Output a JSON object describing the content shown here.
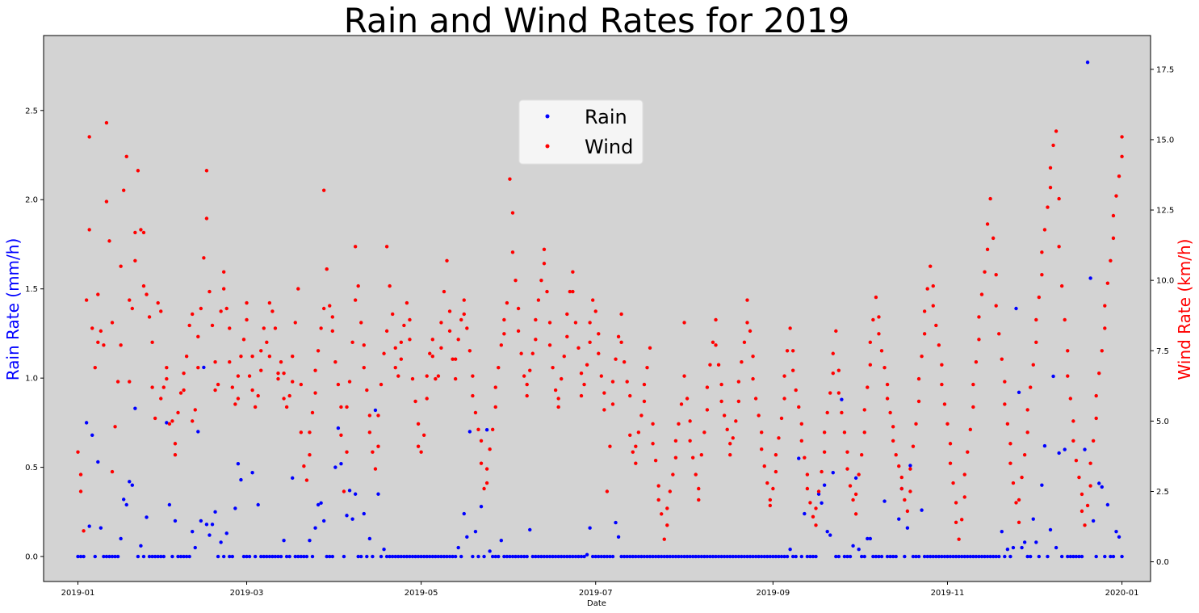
{
  "chart_data": {
    "type": "scatter",
    "title": "Rain and Wind Rates for 2019",
    "xlabel": "Date",
    "ylabel_left": "Rain Rate (mm/h)",
    "ylabel_right": "Wind Rate (km/h)",
    "x_range": [
      "2018-12-20",
      "2020-01-11"
    ],
    "x_ticks": [
      "2019-01",
      "2019-03",
      "2019-05",
      "2019-07",
      "2019-09",
      "2019-11",
      "2020-01"
    ],
    "ylim_left": [
      -0.14,
      2.92
    ],
    "yticks_left": [
      "0.0",
      "0.5",
      "1.0",
      "1.5",
      "2.0",
      "2.5"
    ],
    "ylim_right": [
      -0.7,
      18.7
    ],
    "yticks_right": [
      "0.0",
      "2.5",
      "5.0",
      "7.5",
      "10.0",
      "12.5",
      "15.0",
      "17.5"
    ],
    "background": "#d3d3d3",
    "grid": false,
    "legend_position": "upper-center",
    "series": [
      {
        "name": "Rain",
        "color": "#0000ff",
        "axis": "left",
        "baseline": 0.0,
        "points": [
          [
            "2019-01-04",
            0.75
          ],
          [
            "2019-01-05",
            0.17
          ],
          [
            "2019-01-06",
            0.68
          ],
          [
            "2019-01-08",
            0.53
          ],
          [
            "2019-01-09",
            0.16
          ],
          [
            "2019-01-16",
            0.1
          ],
          [
            "2019-01-17",
            0.32
          ],
          [
            "2019-01-18",
            0.29
          ],
          [
            "2019-01-19",
            0.42
          ],
          [
            "2019-01-20",
            0.4
          ],
          [
            "2019-01-21",
            0.83
          ],
          [
            "2019-01-23",
            0.06
          ],
          [
            "2019-01-25",
            0.22
          ],
          [
            "2019-02-01",
            0.75
          ],
          [
            "2019-02-02",
            0.29
          ],
          [
            "2019-02-04",
            0.2
          ],
          [
            "2019-02-10",
            0.14
          ],
          [
            "2019-02-11",
            0.05
          ],
          [
            "2019-02-12",
            0.7
          ],
          [
            "2019-02-13",
            0.2
          ],
          [
            "2019-02-14",
            1.06
          ],
          [
            "2019-02-15",
            0.18
          ],
          [
            "2019-02-16",
            0.12
          ],
          [
            "2019-02-17",
            0.18
          ],
          [
            "2019-02-18",
            0.25
          ],
          [
            "2019-02-20",
            0.08
          ],
          [
            "2019-02-22",
            0.13
          ],
          [
            "2019-02-25",
            0.27
          ],
          [
            "2019-02-26",
            0.52
          ],
          [
            "2019-02-27",
            0.43
          ],
          [
            "2019-03-03",
            0.47
          ],
          [
            "2019-03-05",
            0.29
          ],
          [
            "2019-03-14",
            0.09
          ],
          [
            "2019-03-17",
            0.44
          ],
          [
            "2019-03-23",
            0.09
          ],
          [
            "2019-03-25",
            0.16
          ],
          [
            "2019-03-26",
            0.29
          ],
          [
            "2019-03-27",
            0.3
          ],
          [
            "2019-03-28",
            0.2
          ],
          [
            "2019-04-01",
            0.5
          ],
          [
            "2019-04-02",
            0.72
          ],
          [
            "2019-04-03",
            0.52
          ],
          [
            "2019-04-05",
            0.23
          ],
          [
            "2019-04-06",
            0.37
          ],
          [
            "2019-04-07",
            0.21
          ],
          [
            "2019-04-08",
            0.35
          ],
          [
            "2019-04-11",
            0.24
          ],
          [
            "2019-04-13",
            0.1
          ],
          [
            "2019-04-15",
            0.82
          ],
          [
            "2019-04-16",
            0.35
          ],
          [
            "2019-04-18",
            0.04
          ],
          [
            "2019-05-14",
            0.05
          ],
          [
            "2019-05-16",
            0.24
          ],
          [
            "2019-05-17",
            0.11
          ],
          [
            "2019-05-18",
            0.7
          ],
          [
            "2019-05-20",
            0.14
          ],
          [
            "2019-05-22",
            0.28
          ],
          [
            "2019-05-24",
            0.71
          ],
          [
            "2019-05-25",
            0.03
          ],
          [
            "2019-05-29",
            0.09
          ],
          [
            "2019-06-08",
            0.15
          ],
          [
            "2019-06-28",
            0.01
          ],
          [
            "2019-06-29",
            0.16
          ],
          [
            "2019-07-08",
            0.19
          ],
          [
            "2019-07-09",
            0.11
          ],
          [
            "2019-09-07",
            0.04
          ],
          [
            "2019-09-10",
            0.55
          ],
          [
            "2019-09-12",
            0.24
          ],
          [
            "2019-09-17",
            0.35
          ],
          [
            "2019-09-18",
            0.3
          ],
          [
            "2019-09-19",
            0.4
          ],
          [
            "2019-09-20",
            0.14
          ],
          [
            "2019-09-21",
            0.12
          ],
          [
            "2019-09-22",
            0.47
          ],
          [
            "2019-09-25",
            0.88
          ],
          [
            "2019-09-29",
            0.06
          ],
          [
            "2019-09-30",
            0.44
          ],
          [
            "2019-10-01",
            0.04
          ],
          [
            "2019-10-04",
            0.1
          ],
          [
            "2019-10-05",
            0.1
          ],
          [
            "2019-10-10",
            0.31
          ],
          [
            "2019-10-15",
            0.21
          ],
          [
            "2019-10-16",
            0.38
          ],
          [
            "2019-10-18",
            0.16
          ],
          [
            "2019-10-19",
            0.51
          ],
          [
            "2019-10-23",
            0.26
          ],
          [
            "2019-11-20",
            0.14
          ],
          [
            "2019-11-22",
            0.04
          ],
          [
            "2019-11-24",
            0.05
          ],
          [
            "2019-11-25",
            1.39
          ],
          [
            "2019-11-26",
            0.92
          ],
          [
            "2019-11-27",
            0.05
          ],
          [
            "2019-11-28",
            0.08
          ],
          [
            "2019-12-01",
            0.21
          ],
          [
            "2019-12-02",
            0.08
          ],
          [
            "2019-12-04",
            0.4
          ],
          [
            "2019-12-05",
            0.62
          ],
          [
            "2019-12-07",
            0.15
          ],
          [
            "2019-12-08",
            1.01
          ],
          [
            "2019-12-09",
            0.05
          ],
          [
            "2019-12-10",
            0.58
          ],
          [
            "2019-12-12",
            0.6
          ],
          [
            "2019-12-19",
            0.6
          ],
          [
            "2019-12-20",
            2.77
          ],
          [
            "2019-12-21",
            1.56
          ],
          [
            "2019-12-22",
            0.2
          ],
          [
            "2019-12-24",
            0.41
          ],
          [
            "2019-12-25",
            0.39
          ],
          [
            "2019-12-27",
            0.29
          ],
          [
            "2019-12-30",
            0.14
          ],
          [
            "2019-12-31",
            0.11
          ]
        ]
      },
      {
        "name": "Wind",
        "color": "#ff0000",
        "axis": "right",
        "values": [
          3.9,
          2.5,
          3.1,
          1.1,
          9.3,
          11.8,
          15.1,
          8.3,
          6.9,
          7.8,
          9.5,
          8.2,
          7.7,
          12.8,
          15.6,
          11.4,
          8.5,
          3.2,
          4.8,
          6.4,
          7.7,
          10.5,
          13.2,
          14.4,
          9.3,
          6.4,
          9.0,
          10.7,
          11.7,
          13.9,
          11.8,
          11.7,
          9.8,
          9.5,
          8.7,
          7.8,
          6.2,
          5.1,
          9.2,
          8.9,
          5.8,
          6.2,
          6.9,
          6.5,
          4.9,
          5.0,
          3.8,
          4.2,
          5.3,
          6.0,
          6.1,
          6.7,
          7.3,
          8.4,
          8.8,
          5.0,
          5.4,
          6.9,
          8.0,
          9.0,
          10.8,
          13.9,
          12.2,
          9.6,
          8.4,
          7.1,
          6.1,
          6.3,
          8.9,
          9.7,
          10.3,
          9.0,
          8.3,
          7.1,
          6.2,
          5.6,
          5.8,
          6.6,
          7.3,
          7.9,
          8.6,
          9.2,
          6.6,
          7.3,
          6.1,
          5.5,
          5.9,
          6.8,
          7.5,
          8.3,
          7.8,
          7.3,
          9.2,
          8.9,
          8.3,
          6.7,
          6.5,
          7.1,
          6.7,
          5.8,
          5.5,
          5.9,
          6.4,
          7.3,
          8.5,
          9.7,
          6.3,
          4.6,
          3.4,
          2.9,
          3.8,
          4.6,
          5.3,
          6.0,
          6.8,
          7.5,
          8.3,
          9.0,
          13.2,
          10.4,
          9.1,
          8.7,
          8.2,
          7.1,
          6.3,
          5.5,
          4.5,
          2.5,
          3.9,
          5.5,
          6.4,
          7.8,
          9.3,
          11.2,
          9.8,
          8.5,
          7.7,
          6.9,
          6.1,
          5.2,
          4.6,
          3.9,
          3.3,
          4.1,
          5.2,
          6.3,
          7.4,
          8.2,
          11.2,
          9.8,
          8.8,
          7.6,
          6.9,
          6.6,
          7.2,
          7.8,
          8.4,
          9.2,
          8.6,
          7.9,
          6.5,
          5.7,
          4.9,
          4.1,
          3.9,
          4.5,
          5.8,
          6.6,
          7.4,
          7.9,
          7.3,
          6.5,
          6.6,
          7.6,
          8.5,
          9.6,
          10.7,
          8.9,
          8.2,
          7.2,
          6.5,
          7.2,
          7.9,
          8.6,
          9.3,
          8.8,
          8.3,
          7.5,
          6.6,
          5.9,
          5.3,
          4.7,
          4.3,
          3.5,
          2.6,
          2.8,
          3.3,
          4.0,
          4.7,
          5.5,
          6.2,
          6.9,
          7.7,
          8.1,
          8.6,
          9.2,
          13.6,
          12.4,
          11.0,
          10.0,
          9.0,
          8.2,
          7.4,
          6.6,
          5.9,
          6.3,
          6.8,
          7.4,
          7.9,
          8.6,
          9.3,
          10.0,
          10.6,
          11.1,
          9.6,
          8.5,
          7.7,
          6.9,
          6.1,
          5.5,
          5.8,
          6.5,
          7.3,
          8.0,
          8.8,
          9.6,
          10.3,
          9.6,
          8.5,
          7.6,
          6.7,
          5.9,
          6.3,
          7.0,
          7.8,
          8.5,
          9.3,
          8.9,
          8.1,
          7.4,
          6.6,
          6.0,
          5.4,
          2.5,
          4.1,
          5.6,
          6.4,
          7.2,
          8.0,
          8.8,
          7.8,
          7.1,
          6.4,
          5.9,
          4.5,
          3.9,
          3.5,
          4.1,
          4.6,
          5.2,
          5.7,
          6.3,
          6.9,
          7.6,
          4.9,
          4.2,
          3.6,
          2.7,
          2.2,
          1.7,
          0.8,
          1.3,
          1.9,
          2.5,
          3.1,
          3.7,
          4.3,
          4.9,
          5.6,
          8.5,
          6.6,
          5.8,
          5.0,
          4.3,
          3.7,
          3.1,
          2.6,
          2.2,
          3.8,
          4.6,
          5.4,
          6.2,
          7.0,
          7.8,
          8.6,
          7.7,
          7.0,
          6.3,
          5.7,
          5.2,
          4.7,
          4.2,
          3.8,
          4.4,
          5.0,
          5.7,
          6.4,
          7.1,
          7.8,
          8.5,
          9.3,
          8.2,
          7.3,
          6.5,
          5.8,
          5.2,
          4.6,
          4.0,
          3.4,
          2.8,
          2.2,
          2.0,
          2.6,
          3.2,
          3.8,
          4.4,
          5.1,
          5.8,
          6.6,
          7.5,
          8.3,
          7.5,
          6.8,
          6.1,
          5.5,
          4.9,
          4.3,
          3.7,
          3.1,
          2.6,
          2.1,
          1.6,
          1.3,
          1.9,
          2.5,
          3.2,
          3.9,
          4.6,
          5.3,
          6.0,
          6.7,
          7.4,
          8.2,
          6.8,
          6.0,
          5.3,
          4.6,
          3.9,
          3.3,
          2.7,
          2.2,
          1.7,
          2.4,
          3.1,
          3.8,
          4.6,
          5.4,
          6.2,
          7.0,
          7.8,
          8.6,
          9.4,
          8.7,
          8.1,
          7.5,
          6.9,
          6.3,
          5.8,
          5.3,
          4.8,
          4.3,
          3.8,
          3.4,
          3.0,
          2.6,
          2.2,
          1.8,
          2.5,
          3.3,
          4.1,
          4.9,
          5.7,
          6.5,
          7.3,
          8.1,
          8.9,
          9.7,
          10.5,
          9.8,
          9.1,
          8.4,
          7.7,
          7.0,
          6.3,
          5.6,
          4.9,
          4.2,
          3.5,
          2.8,
          2.1,
          1.4,
          0.8,
          1.5,
          2.3,
          3.1,
          3.9,
          4.7,
          5.5,
          6.3,
          7.1,
          7.9,
          8.7,
          9.5,
          10.3,
          11.1,
          12.0,
          12.9,
          11.5,
          10.2,
          9.1,
          8.1,
          7.2,
          6.4,
          5.6,
          4.9,
          4.2,
          3.5,
          2.8,
          2.1,
          1.4,
          2.2,
          3.0,
          3.8,
          4.6,
          5.4,
          6.2,
          7.0,
          7.8,
          8.6,
          9.4,
          10.2,
          11.0,
          11.8,
          12.6,
          13.3,
          14.0,
          14.8,
          15.3,
          12.9,
          11.2,
          9.8,
          8.6,
          7.5,
          6.6,
          5.8,
          5.0,
          4.3,
          3.6,
          3.0,
          2.4,
          1.8,
          1.3,
          2.0,
          2.7,
          3.5,
          4.3,
          5.1,
          5.9,
          6.7,
          7.5,
          8.3,
          9.1,
          9.9,
          10.7,
          11.5,
          12.3,
          13.0,
          13.7,
          14.4,
          15.1
        ]
      }
    ]
  },
  "legend": {
    "items": [
      {
        "label": "Rain",
        "color": "#0000ff"
      },
      {
        "label": "Wind",
        "color": "#ff0000"
      }
    ]
  }
}
